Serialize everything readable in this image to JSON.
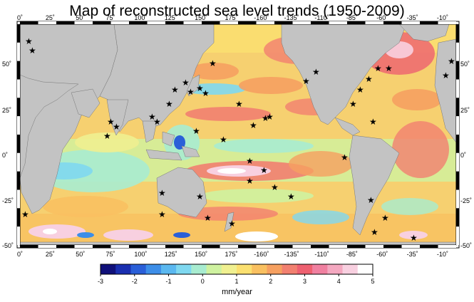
{
  "title": "Map of reconstructed sea level trends (1950-2009)",
  "x_ticks": [
    "0˚",
    "25˚",
    "50˚",
    "75˚",
    "100˚",
    "125˚",
    "150˚",
    "175˚",
    "-160˚",
    "-135˚",
    "-110˚",
    "-85˚",
    "-60˚",
    "-35˚",
    "-10˚"
  ],
  "y_ticks_left": [
    "50˚",
    "25˚",
    "0˚",
    "-25˚",
    "-50˚"
  ],
  "y_ticks_right": [
    "50˚",
    "25˚",
    "0˚",
    "-25˚",
    "-50˚"
  ],
  "colorbar": {
    "ticks": [
      "-3",
      "-2",
      "-1",
      "0",
      "1",
      "2",
      "3",
      "4",
      "5"
    ],
    "unit": "mm/year",
    "range": [
      -3,
      5
    ],
    "colors": [
      "#10107a",
      "#1a2fb0",
      "#2a5fd8",
      "#3d8ee8",
      "#5bb8f0",
      "#7fd8f0",
      "#a8ecd0",
      "#cff2a0",
      "#f0f090",
      "#fbe070",
      "#f9c060",
      "#f6a060",
      "#f28070",
      "#ee6070",
      "#f080a0",
      "#f4a8c0",
      "#f8d0e0",
      "#ffffff"
    ]
  },
  "colors": {
    "land": "#c3c3c3",
    "ocean_base": "#f6d070",
    "star": "#000000"
  }
}
